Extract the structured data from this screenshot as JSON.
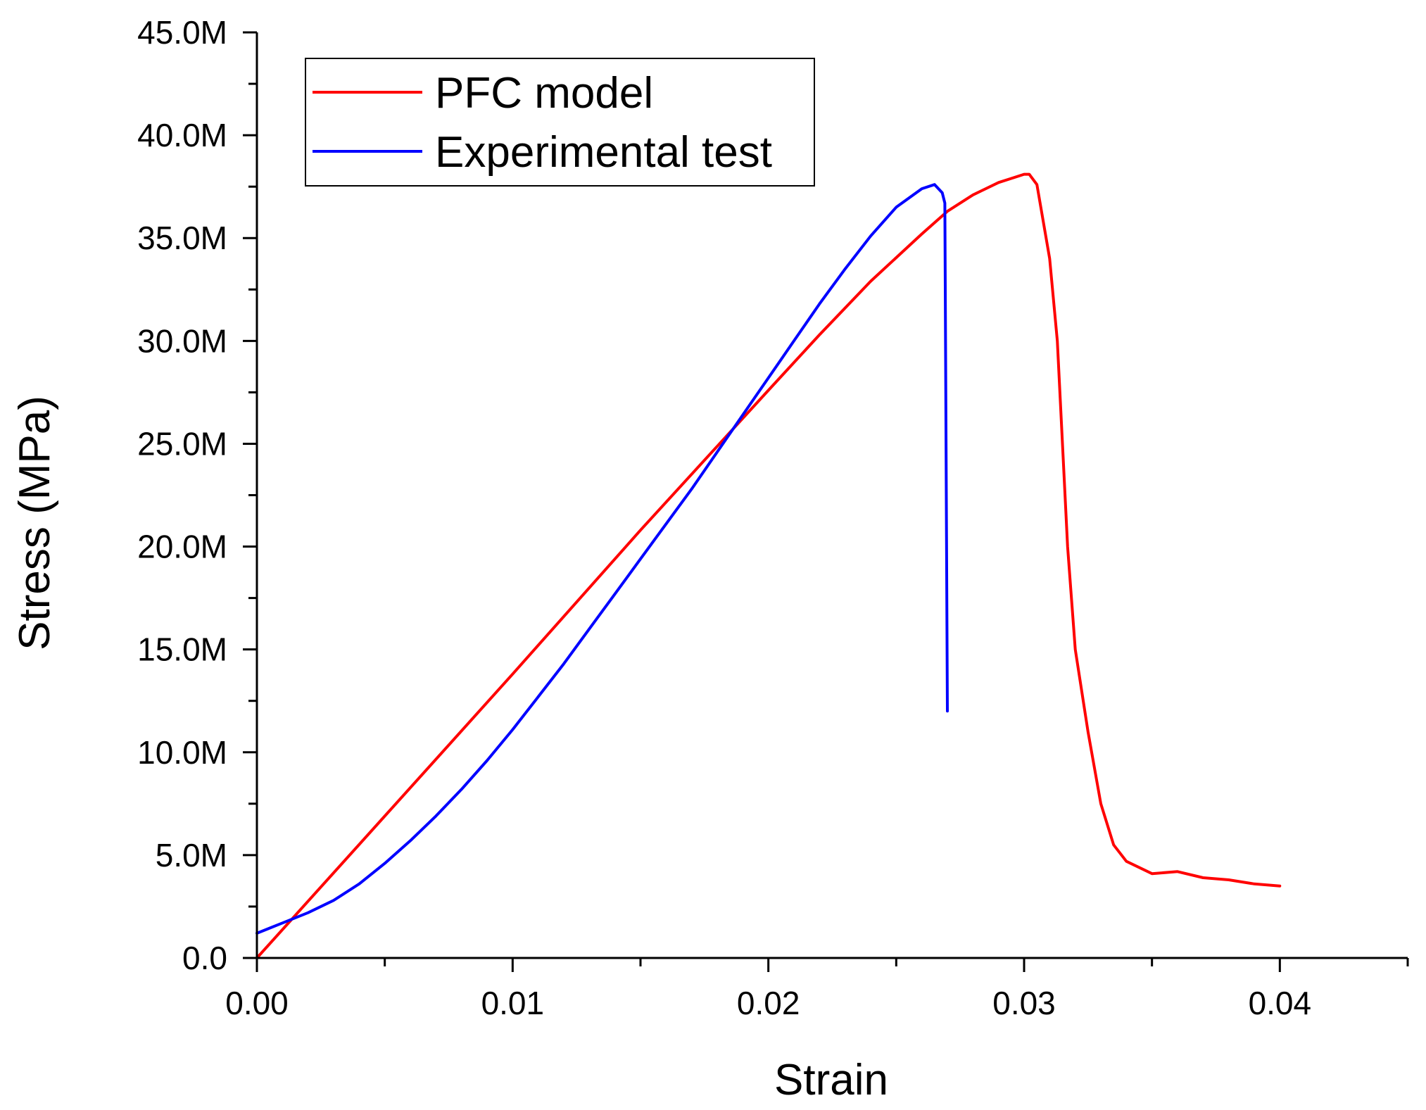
{
  "chart_data": {
    "type": "line",
    "title": "",
    "xlabel": "Strain",
    "ylabel": "Stress (MPa)",
    "xlim": [
      0,
      0.045
    ],
    "ylim": [
      0,
      45000000
    ],
    "grid": false,
    "legend_position": "top-left",
    "x_ticks": [
      0,
      0.01,
      0.02,
      0.03,
      0.04
    ],
    "x_tick_labels": [
      "0.00",
      "0.01",
      "0.02",
      "0.03",
      "0.04"
    ],
    "y_ticks": [
      0,
      5000000,
      10000000,
      15000000,
      20000000,
      25000000,
      30000000,
      35000000,
      40000000,
      45000000
    ],
    "y_tick_labels": [
      "0.0",
      "5.0M",
      "10.0M",
      "15.0M",
      "20.0M",
      "25.0M",
      "30.0M",
      "35.0M",
      "40.0M",
      "45.0M"
    ],
    "series": [
      {
        "name": "PFC model",
        "color": "#ff0000",
        "x": [
          0,
          0.005,
          0.01,
          0.015,
          0.02,
          0.022,
          0.024,
          0.026,
          0.027,
          0.028,
          0.029,
          0.0295,
          0.03,
          0.0302,
          0.0305,
          0.031,
          0.0313,
          0.0317,
          0.032,
          0.0325,
          0.033,
          0.0335,
          0.034,
          0.035,
          0.036,
          0.037,
          0.038,
          0.039,
          0.04
        ],
        "y": [
          0,
          6900000,
          13800000,
          20800000,
          27600000,
          30300000,
          32900000,
          35200000,
          36300000,
          37100000,
          37700000,
          37900000,
          38100000,
          38100000,
          37600000,
          34000000,
          30000000,
          20000000,
          15000000,
          11000000,
          7500000,
          5500000,
          4700000,
          4100000,
          4200000,
          3900000,
          3800000,
          3600000,
          3500000
        ]
      },
      {
        "name": "Experimental test",
        "color": "#0000ff",
        "x": [
          0,
          0.001,
          0.002,
          0.003,
          0.004,
          0.005,
          0.006,
          0.007,
          0.008,
          0.009,
          0.01,
          0.011,
          0.012,
          0.013,
          0.014,
          0.015,
          0.016,
          0.017,
          0.018,
          0.019,
          0.02,
          0.021,
          0.022,
          0.023,
          0.024,
          0.025,
          0.026,
          0.0265,
          0.0268,
          0.0269,
          0.027
        ],
        "y": [
          1200000,
          1700000,
          2200000,
          2800000,
          3600000,
          4600000,
          5700000,
          6900000,
          8200000,
          9600000,
          11100000,
          12700000,
          14300000,
          16000000,
          17700000,
          19400000,
          21100000,
          22800000,
          24600000,
          26400000,
          28200000,
          30000000,
          31800000,
          33500000,
          35100000,
          36500000,
          37400000,
          37600000,
          37200000,
          36700000,
          12000000
        ]
      }
    ]
  }
}
